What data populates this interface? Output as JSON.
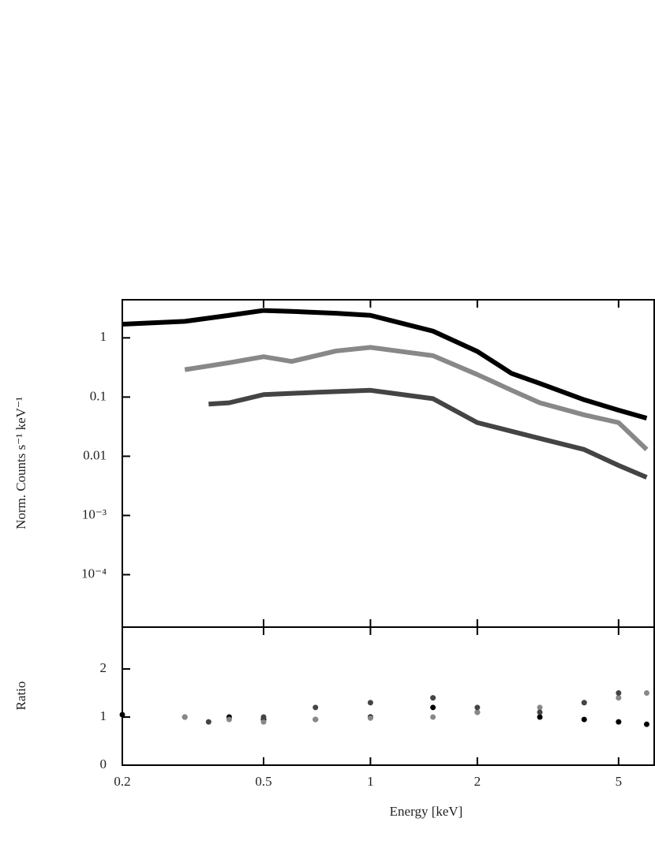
{
  "chart_data": [
    {
      "type": "line",
      "ylabel": "Norm. Counts s⁻¹ keV⁻¹",
      "xscale": "log",
      "yscale": "log",
      "xlim": [
        0.2,
        6.3
      ],
      "ylim": [
        1.3e-05,
        4.4
      ],
      "xticks": [
        0.2,
        0.5,
        1,
        2,
        5
      ],
      "yticks": [
        1,
        0.1,
        0.01,
        {
          "value": 0.001,
          "label": "10⁻³"
        },
        {
          "value": 0.0001,
          "label": "10⁻⁴"
        }
      ],
      "series": [
        {
          "color": "#000000",
          "x": [
            0.2,
            0.3,
            0.4,
            0.5,
            0.6,
            0.8,
            1,
            1.5,
            2,
            2.5,
            3,
            4,
            5,
            6
          ],
          "values": [
            1.7,
            1.9,
            2.4,
            2.9,
            2.8,
            2.6,
            2.4,
            1.3,
            0.59,
            0.25,
            0.17,
            0.09,
            0.06,
            0.044
          ]
        },
        {
          "color": "#888888",
          "x": [
            0.3,
            0.4,
            0.5,
            0.6,
            0.8,
            1,
            1.5,
            2,
            2.5,
            3,
            4,
            5,
            6
          ],
          "values": [
            0.29,
            0.38,
            0.48,
            0.4,
            0.6,
            0.69,
            0.5,
            0.24,
            0.13,
            0.08,
            0.05,
            0.037,
            0.013
          ]
        },
        {
          "color": "#444444",
          "x": [
            0.35,
            0.4,
            0.5,
            0.7,
            1,
            1.5,
            2,
            3,
            4,
            5,
            6
          ],
          "values": [
            0.076,
            0.08,
            0.11,
            0.12,
            0.13,
            0.094,
            0.037,
            0.02,
            0.013,
            0.007,
            0.0044
          ]
        }
      ]
    },
    {
      "type": "scatter",
      "xlabel": "Energy [keV]",
      "ylabel": "Ratio",
      "xscale": "log",
      "xlim": [
        0.2,
        6.3
      ],
      "ylim": [
        0,
        2.87
      ],
      "xticks": [
        0.2,
        0.5,
        1,
        2,
        5
      ],
      "yticks": [
        0,
        1,
        2
      ],
      "series": [
        {
          "color": "#000000",
          "x": [
            0.2,
            0.3,
            0.4,
            0.5,
            0.7,
            1,
            1.5,
            2,
            3,
            4,
            5,
            6
          ],
          "values": [
            1.05,
            1.0,
            1.0,
            0.95,
            0.95,
            1.0,
            1.2,
            1.1,
            1.0,
            0.95,
            0.9,
            0.85
          ]
        },
        {
          "color": "#888888",
          "x": [
            0.3,
            0.4,
            0.5,
            0.7,
            1,
            1.5,
            2,
            3,
            4,
            5,
            6
          ],
          "values": [
            1.0,
            0.95,
            0.9,
            0.95,
            0.98,
            1.0,
            1.1,
            1.2,
            1.3,
            1.4,
            1.5
          ]
        },
        {
          "color": "#444444",
          "x": [
            0.35,
            0.5,
            0.7,
            1,
            1.5,
            2,
            3,
            4,
            5
          ],
          "values": [
            0.9,
            1.0,
            1.2,
            1.3,
            1.4,
            1.2,
            1.1,
            1.3,
            1.5
          ]
        }
      ]
    }
  ]
}
